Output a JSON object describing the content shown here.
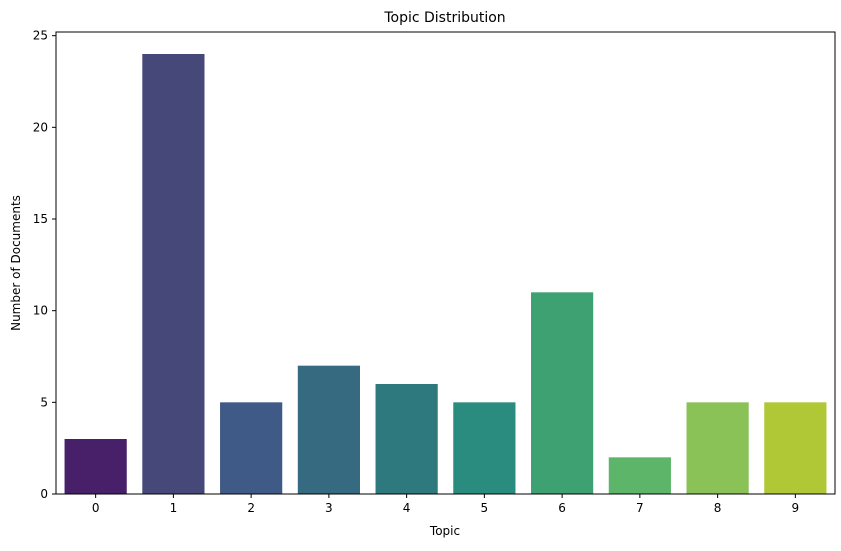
{
  "chart_data": {
    "type": "bar",
    "title": "Topic Distribution",
    "xlabel": "Topic",
    "ylabel": "Number of Documents",
    "categories": [
      "0",
      "1",
      "2",
      "3",
      "4",
      "5",
      "6",
      "7",
      "8",
      "9"
    ],
    "values": [
      3,
      24,
      5,
      7,
      6,
      5,
      11,
      2,
      5,
      5
    ],
    "ylim": [
      0,
      25.2
    ],
    "yticks": [
      0,
      5,
      10,
      15,
      20,
      25
    ],
    "colors": [
      "#48206a",
      "#46487a",
      "#3f5a86",
      "#366a80",
      "#2e797d",
      "#2a8c7f",
      "#3da172",
      "#5db56a",
      "#8bc257",
      "#b0c736"
    ],
    "grid": false,
    "legend": "none"
  }
}
